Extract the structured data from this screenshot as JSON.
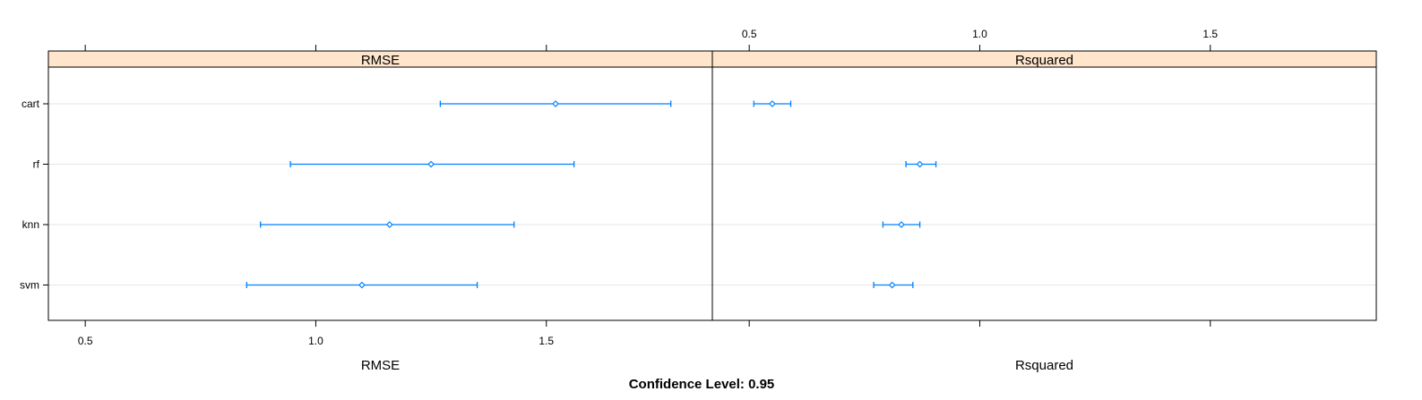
{
  "chart_data": {
    "type": "dotplot",
    "footer": "Confidence Level: 0.95",
    "strip_color": "#ffe5cc",
    "series_color": "#0080ff",
    "grid_color": "#e6e6e6",
    "grid": true,
    "categories": [
      "cart",
      "rf",
      "knn",
      "svm"
    ],
    "xlim": [
      0.42,
      1.86
    ],
    "ticks": [
      {
        "value": 0.5,
        "label": "0.5"
      },
      {
        "value": 1.0,
        "label": "1.0"
      },
      {
        "value": 1.5,
        "label": "1.5"
      }
    ],
    "panels": [
      {
        "title": "RMSE",
        "xlabel": "RMSE",
        "tick_labels_side": "bottom",
        "points": [
          {
            "model": "cart",
            "estimate": 1.52,
            "lower": 1.27,
            "upper": 1.77
          },
          {
            "model": "rf",
            "estimate": 1.25,
            "lower": 0.945,
            "upper": 1.56
          },
          {
            "model": "knn",
            "estimate": 1.16,
            "lower": 0.88,
            "upper": 1.43
          },
          {
            "model": "svm",
            "estimate": 1.1,
            "lower": 0.85,
            "upper": 1.35
          }
        ]
      },
      {
        "title": "Rsquared",
        "xlabel": "Rsquared",
        "tick_labels_side": "top",
        "points": [
          {
            "model": "cart",
            "estimate": 0.55,
            "lower": 0.51,
            "upper": 0.59
          },
          {
            "model": "rf",
            "estimate": 0.87,
            "lower": 0.84,
            "upper": 0.905
          },
          {
            "model": "knn",
            "estimate": 0.83,
            "lower": 0.79,
            "upper": 0.87
          },
          {
            "model": "svm",
            "estimate": 0.81,
            "lower": 0.77,
            "upper": 0.855
          }
        ]
      }
    ]
  }
}
